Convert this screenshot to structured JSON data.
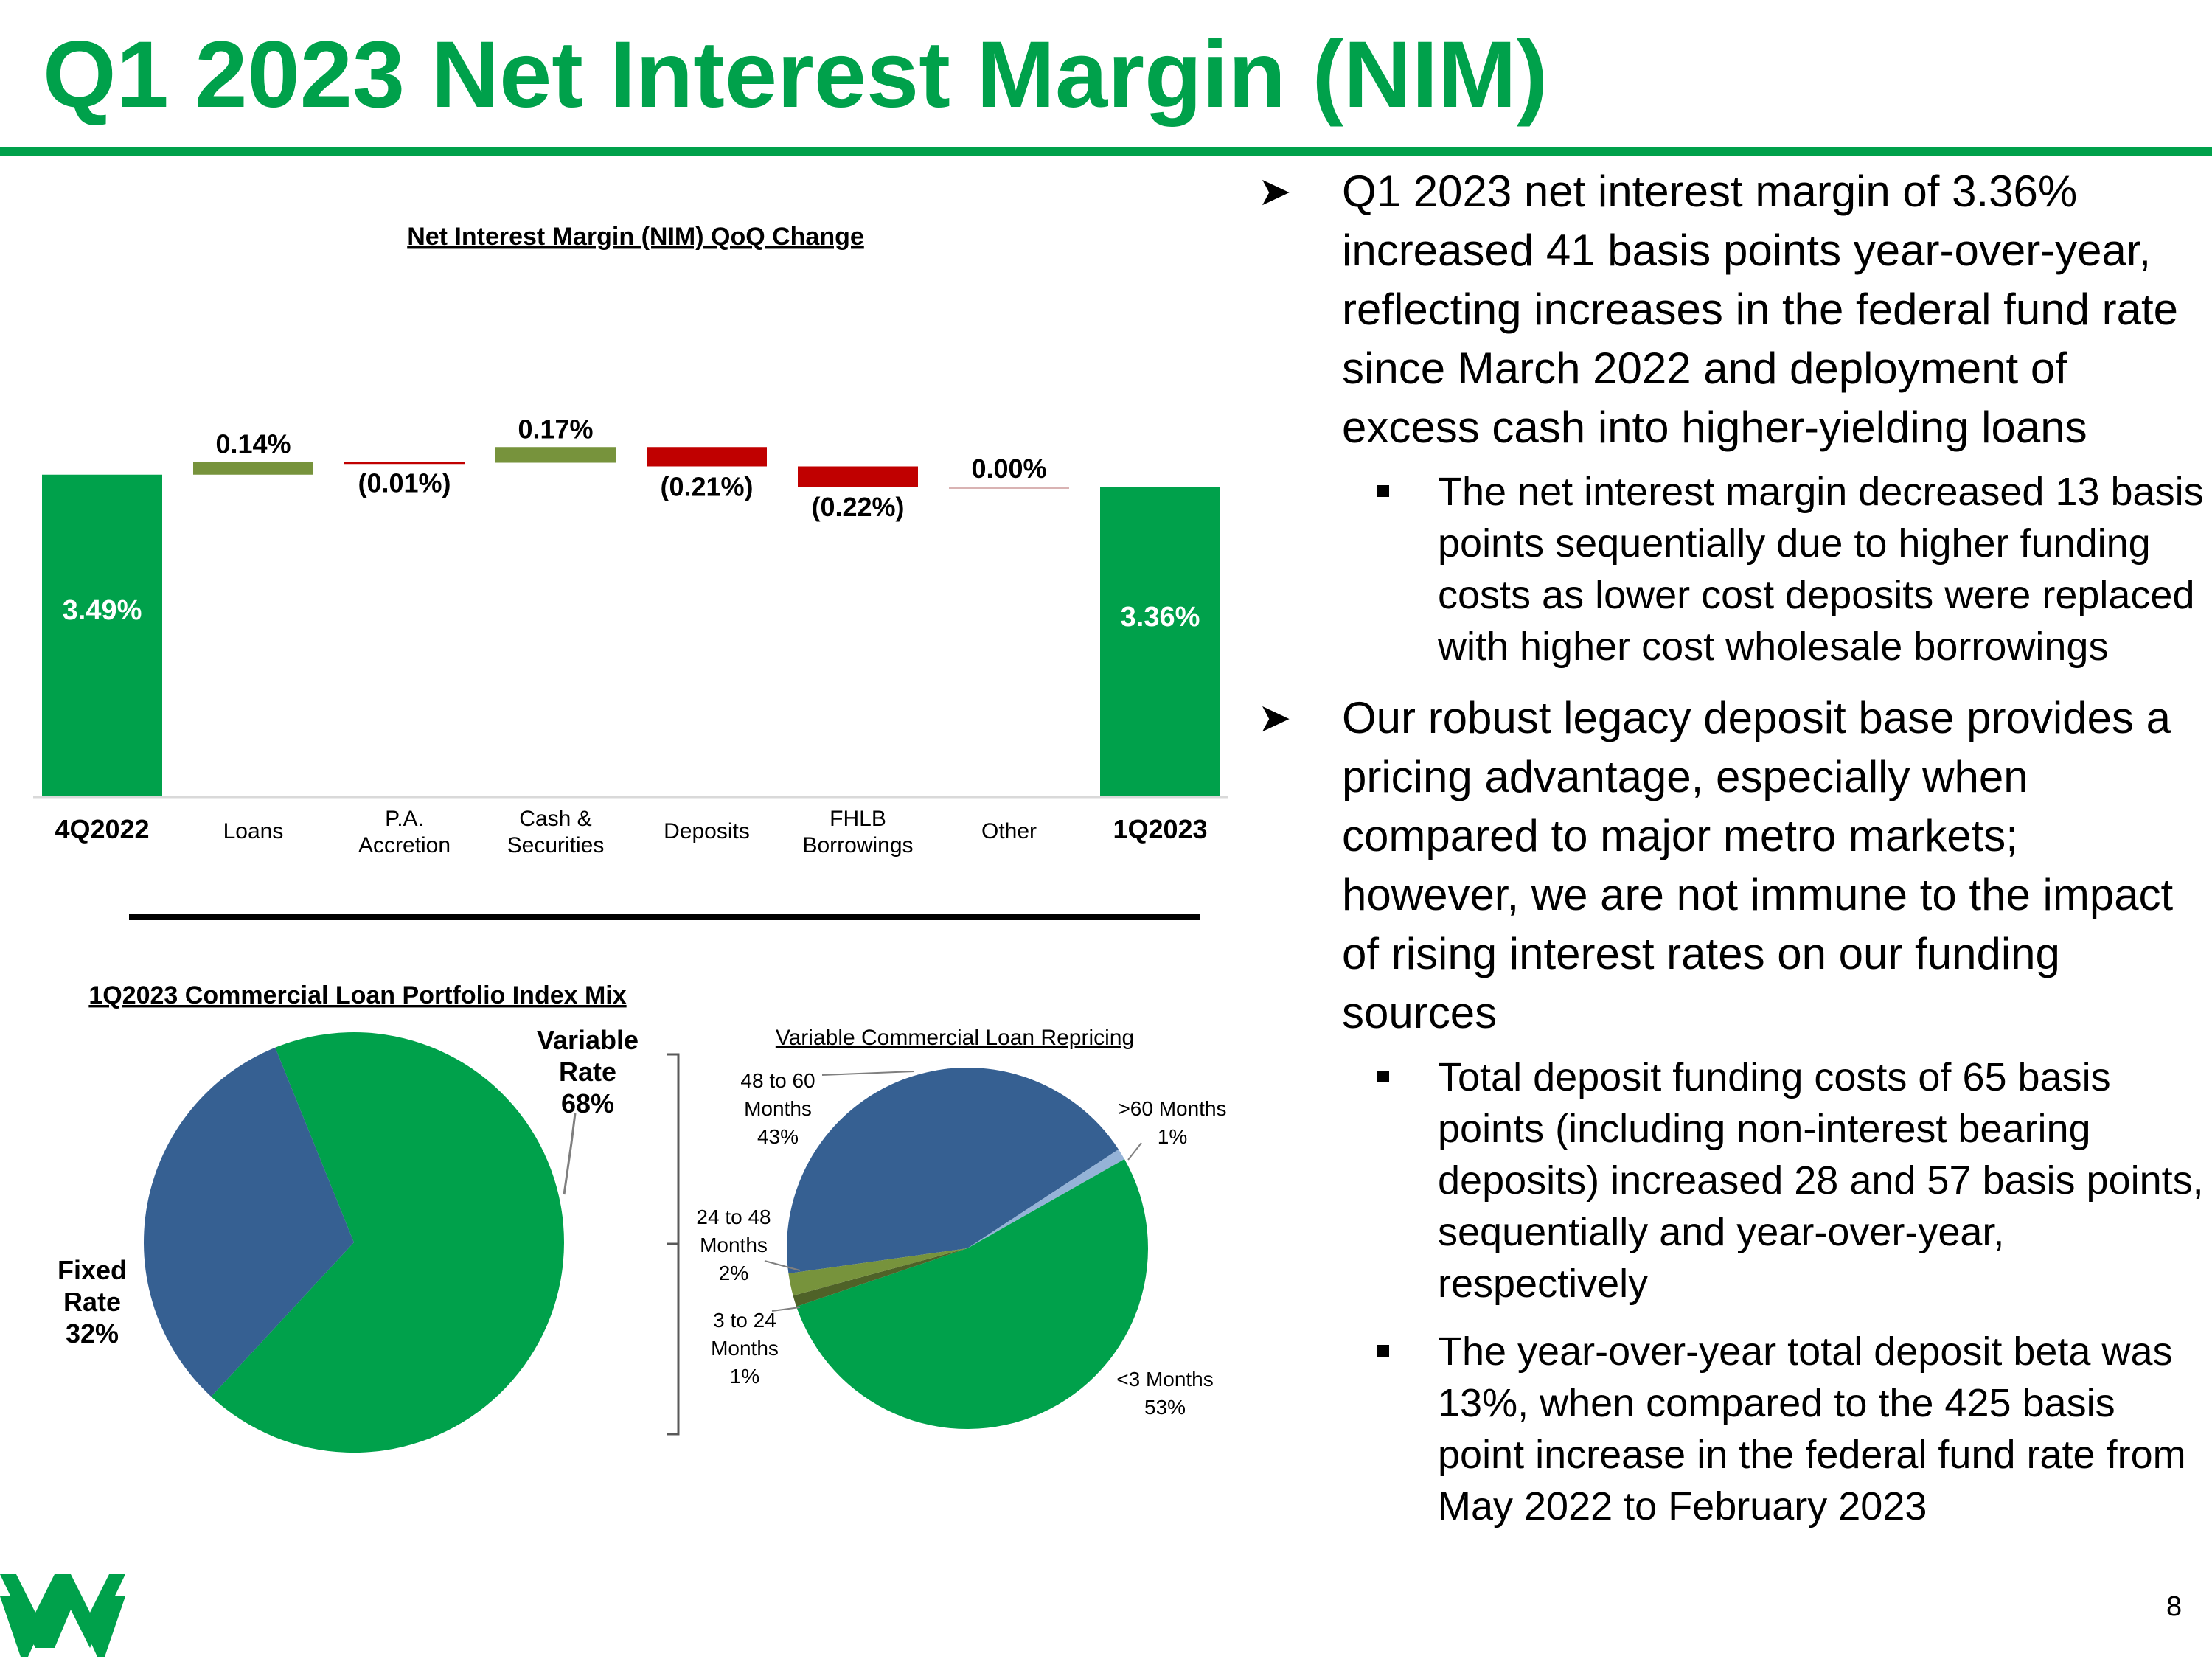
{
  "slide": {
    "title": "Q1 2023 Net Interest Margin (NIM)",
    "page_number": "8",
    "brand_color": "#00a14b"
  },
  "bullets": [
    {
      "text": "Q1 2023 net interest margin of 3.36% increased 41 basis points year-over-year, reflecting increases in the federal fund rate since March 2022 and deployment of excess cash into higher-yielding loans",
      "subs": [
        "The net interest margin decreased 13 basis points sequentially due to higher funding costs as lower cost deposits were replaced with higher cost wholesale borrowings"
      ]
    },
    {
      "text": "Our robust legacy deposit base provides a pricing advantage, especially when compared to major metro markets; however, we are not immune to the impact of rising interest rates on our funding sources",
      "subs": [
        "Total deposit funding costs of 65 basis points (including non-interest bearing deposits) increased 28 and 57 basis points, sequentially and year-over-year, respectively",
        "The year-over-year total deposit beta was 13%, when compared to the 425 basis point increase in the federal fund rate from May 2022 to February 2023"
      ]
    }
  ],
  "chart_data": [
    {
      "type": "bar",
      "title": "Net Interest Margin (NIM) QoQ Change",
      "categories": [
        "4Q2022",
        "Loans",
        "P.A. Accretion",
        "Cash & Securities",
        "Deposits",
        "FHLB Borrowings",
        "Other",
        "1Q2023"
      ],
      "category_lines": [
        [
          "4Q2022"
        ],
        [
          "Loans"
        ],
        [
          "P.A.",
          "Accretion"
        ],
        [
          "Cash &",
          "Securities"
        ],
        [
          "Deposits"
        ],
        [
          "FHLB",
          "Borrowings"
        ],
        [
          "Other"
        ],
        [
          "1Q2023"
        ]
      ],
      "values": [
        3.49,
        0.14,
        -0.01,
        0.17,
        -0.21,
        -0.22,
        0.0,
        3.36
      ],
      "labels": [
        "3.49%",
        "0.14%",
        "(0.01%)",
        "0.17%",
        "(0.21%)",
        "(0.22%)",
        "0.00%",
        "3.36%"
      ],
      "kinds": [
        "total",
        "delta",
        "delta",
        "delta",
        "delta",
        "delta",
        "delta",
        "total"
      ],
      "y_scale": "axis not shown; bars drawn to scale from a 0% baseline",
      "colors": {
        "total": "#00a14b",
        "increase": "#77933c",
        "decrease": "#c00000",
        "zero": "#d9b3b3"
      }
    },
    {
      "type": "pie",
      "title": "1Q2023 Commercial Loan Portfolio Index Mix",
      "slices": [
        {
          "lines": [
            "Variable",
            "Rate",
            "68%"
          ],
          "value": 68,
          "color": "#00a14b"
        },
        {
          "lines": [
            "Fixed",
            "Rate",
            "32%"
          ],
          "value": 32,
          "color": "#366092"
        }
      ]
    },
    {
      "type": "pie",
      "title": "Variable Commercial Loan Repricing",
      "slices": [
        {
          "lines": [
            "48 to 60",
            "Months",
            "43%"
          ],
          "value": 43,
          "color": "#366092"
        },
        {
          "lines": [
            ">60 Months",
            "1%"
          ],
          "value": 1,
          "color": "#95b3d7"
        },
        {
          "lines": [
            "<3 Months",
            "53%"
          ],
          "value": 53,
          "color": "#00a14b"
        },
        {
          "lines": [
            "3 to 24",
            "Months",
            "1%"
          ],
          "value": 1,
          "color": "#4f6228"
        },
        {
          "lines": [
            "24 to 48",
            "Months",
            "2%"
          ],
          "value": 2,
          "color": "#77933c"
        }
      ]
    }
  ]
}
